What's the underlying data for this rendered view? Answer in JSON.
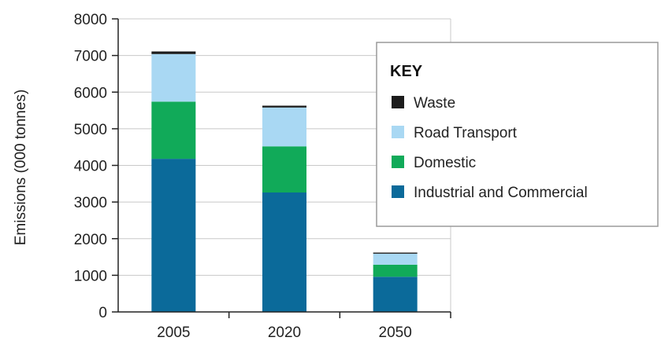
{
  "chart_data": {
    "type": "bar",
    "stacked": true,
    "categories": [
      "2005",
      "2020",
      "2050"
    ],
    "ylabel": "Emissions (000 tonnes)",
    "xlabel": "",
    "ylim": [
      0,
      8000
    ],
    "yticks": [
      "0",
      "1000",
      "2000",
      "3000",
      "4000",
      "5000",
      "6000",
      "7000",
      "8000"
    ],
    "grid": true,
    "legend": {
      "title": "KEY",
      "position": "right"
    },
    "series": [
      {
        "name": "Industrial and Commercial",
        "color": "#0b6a9a",
        "values": [
          4180,
          3260,
          960
        ]
      },
      {
        "name": "Domestic",
        "color": "#11aa59",
        "values": [
          1560,
          1260,
          330
        ]
      },
      {
        "name": "Road Transport",
        "color": "#a9d8f3",
        "values": [
          1300,
          1060,
          300
        ]
      },
      {
        "name": "Waste",
        "color": "#1c1c1c",
        "values": [
          70,
          50,
          30
        ]
      }
    ]
  }
}
